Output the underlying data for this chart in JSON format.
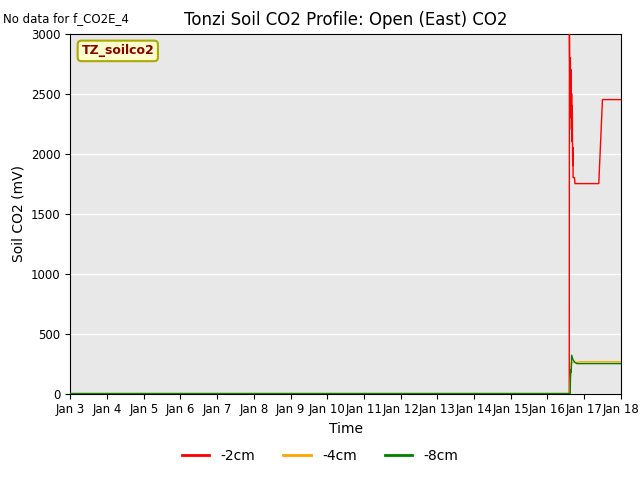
{
  "title": "Tonzi Soil CO2 Profile: Open (East) CO2",
  "no_data_text": "No data for f_CO2E_4",
  "ylabel": "Soil CO2 (mV)",
  "xlabel": "Time",
  "legend_label": "TZ_soilco2",
  "ylim": [
    0,
    3000
  ],
  "plot_bg_color": "#e8e8e8",
  "grid_color": "white",
  "ylim_top": 3000,
  "xstart": 0,
  "xend": 15.0,
  "xtick_labels": [
    "Jan 3",
    "Jan 4",
    "Jan 5",
    "Jan 6",
    "Jan 7",
    "Jan 8",
    "Jan 9",
    "Jan 10",
    "Jan 11",
    "Jan 12",
    "Jan 13",
    "Jan 14",
    "Jan 15",
    "Jan 16",
    "Jan 17",
    "Jan 18"
  ],
  "xtick_positions": [
    0,
    1,
    2,
    3,
    4,
    5,
    6,
    7,
    8,
    9,
    10,
    11,
    12,
    13,
    14,
    15
  ],
  "ytick_positions": [
    0,
    500,
    1000,
    1500,
    2000,
    2500,
    3000
  ],
  "title_fontsize": 12,
  "label_fontsize": 10,
  "tick_fontsize": 8.5,
  "legend_box_color": "#ffffcc",
  "legend_box_edge": "#aaaa00",
  "legend_text_color": "#880000",
  "red_x": [
    0,
    13.595,
    13.6,
    13.605,
    13.61,
    13.615,
    13.62,
    13.625,
    13.63,
    13.635,
    13.64,
    13.645,
    13.65,
    13.655,
    13.66,
    13.665,
    13.67,
    13.675,
    13.68,
    13.685,
    13.69,
    13.695,
    13.7,
    13.71,
    13.72,
    13.73,
    13.74,
    13.75,
    13.8,
    13.85,
    13.9,
    14.0,
    14.1,
    14.15,
    14.2,
    14.3,
    14.4,
    14.5,
    14.6,
    14.7,
    14.8,
    14.9,
    15.0
  ],
  "red_y": [
    0,
    0,
    3000,
    2800,
    2650,
    2750,
    2500,
    2800,
    2600,
    2400,
    2700,
    2300,
    2600,
    2200,
    2500,
    2100,
    2400,
    2200,
    2300,
    2000,
    1900,
    2050,
    1800,
    1800,
    1800,
    1800,
    1800,
    1750,
    1750,
    1750,
    1750,
    1750,
    1750,
    1750,
    1750,
    1750,
    1750,
    2450,
    2450,
    2450,
    2450,
    2450,
    2450
  ],
  "orange_x": [
    0,
    13.595,
    13.6,
    13.65,
    13.7,
    13.8,
    13.9,
    14.0,
    14.5,
    15.0
  ],
  "orange_y": [
    0,
    0,
    0,
    255,
    260,
    260,
    265,
    265,
    265,
    265
  ],
  "green_x": [
    0,
    13.59,
    13.595,
    13.6,
    13.61,
    13.62,
    13.63,
    13.64,
    13.65,
    13.66,
    13.7,
    13.75,
    13.8,
    13.9,
    14.0,
    14.5,
    14.9,
    15.0
  ],
  "green_y": [
    0,
    0,
    0,
    0,
    0,
    0,
    150,
    200,
    180,
    320,
    280,
    260,
    250,
    250,
    250,
    250,
    250,
    250
  ]
}
